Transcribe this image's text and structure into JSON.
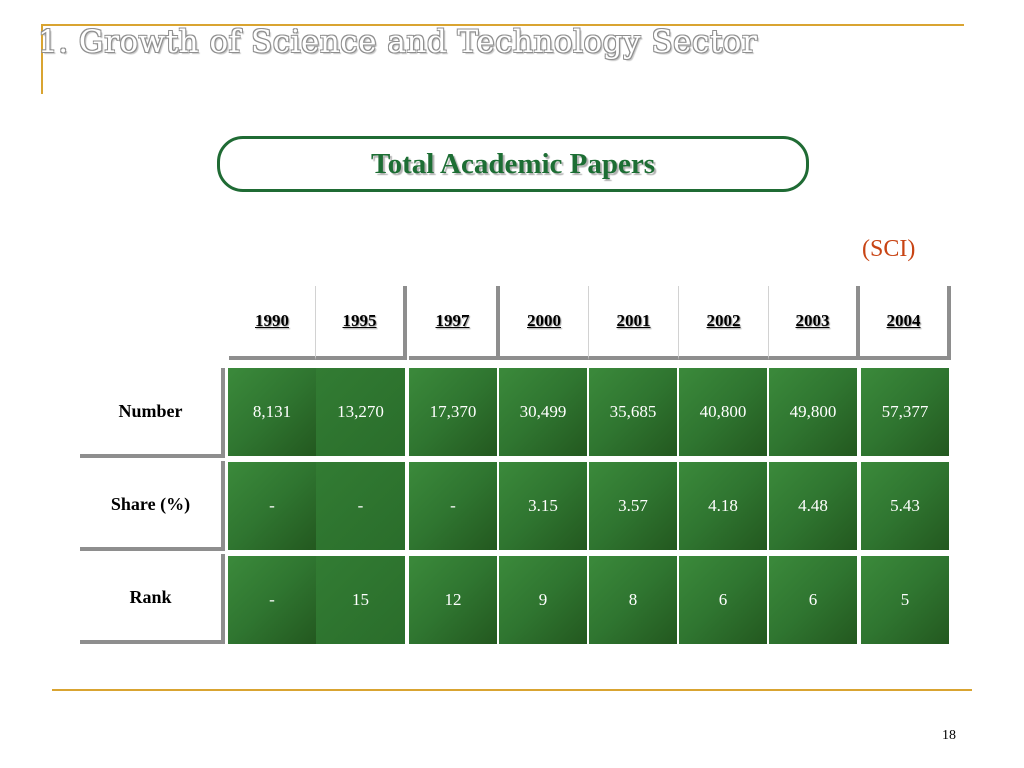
{
  "slide": {
    "title": "1. Growth of Science and Technology Sector",
    "heading": "Total Academic Papers",
    "source": "(SCI)",
    "page_number": "18"
  },
  "table": {
    "years": [
      "1990",
      "1995",
      "1997",
      "2000",
      "2001",
      "2002",
      "2003",
      "2004"
    ],
    "rows": [
      {
        "label": "Number",
        "values": [
          "8,131",
          "13,270",
          "17,370",
          "30,499",
          "35,685",
          "40,800",
          "49,800",
          "57,377"
        ]
      },
      {
        "label": "Share (%)",
        "values": [
          "-",
          "-",
          "-",
          "3.15",
          "3.57",
          "4.18",
          "4.48",
          "5.43"
        ]
      },
      {
        "label": "Rank",
        "values": [
          "-",
          "15",
          "12",
          "9",
          "8",
          "6",
          "6",
          "5"
        ]
      }
    ]
  },
  "colors": {
    "accent_rule": "#d9a431",
    "heading_green": "#1d6e34",
    "cell_green": "#2f7530",
    "source_red": "#c84414"
  }
}
